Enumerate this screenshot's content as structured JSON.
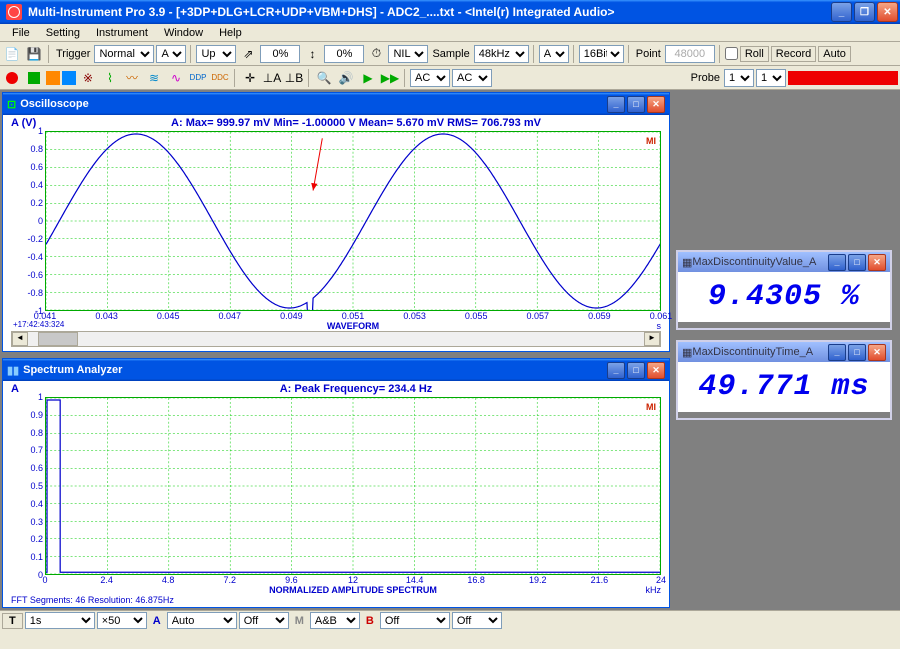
{
  "app": {
    "title": "Multi-Instrument Pro 3.9   -   [+3DP+DLG+LCR+UDP+VBM+DHS]   -   ADC2_....txt   -   <Intel(r) Integrated Audio>"
  },
  "menu": {
    "file": "File",
    "setting": "Setting",
    "instrument": "Instrument",
    "window": "Window",
    "help": "Help"
  },
  "toolbar1": {
    "trigger": "Trigger",
    "mode": "Normal",
    "edge": "A",
    "slope": "Up",
    "level1": "0%",
    "level2": "0%",
    "coupling": "NIL",
    "sample": "Sample",
    "rate": "48kHz",
    "ch": "A",
    "bits": "16Bit",
    "point": "Point",
    "points": "48000",
    "roll": "Roll",
    "record": "Record",
    "auto": "Auto"
  },
  "toolbar2": {
    "ac1": "AC",
    "ac2": "AC",
    "probe": "Probe",
    "p1": "1",
    "p2": "1"
  },
  "osc": {
    "title": "Oscilloscope",
    "ylabel": "A  (V)",
    "stats": "A: Max=     999.97 mV   Min=   -1.00000    V   Mean=        5.670 mV  RMS=     706.793 mV",
    "xlabel": "WAVEFORM",
    "xunit": "s",
    "timestamp": "+17:42:43:324",
    "marker": "MI",
    "yticks": [
      "1",
      "0.8",
      "0.6",
      "0.4",
      "0.2",
      "0",
      "-0.2",
      "-0.4",
      "-0.6",
      "-0.8",
      "-1"
    ],
    "xticks": [
      "0.041",
      "0.043",
      "0.045",
      "0.047",
      "0.049",
      "0.051",
      "0.053",
      "0.055",
      "0.057",
      "0.059",
      "0.061"
    ],
    "ylim": [
      -1,
      1
    ],
    "xlim": [
      0.041,
      0.061
    ],
    "grid_color": "#00cc00",
    "line_color": "#0000cc",
    "bg_color": "#ffffff",
    "sine_freq_hz": 100,
    "sine_amplitude": 1.0,
    "glitch_time": 0.0496,
    "glitch_depth": 0.25,
    "arrow_from": [
      0.05,
      0.95
    ],
    "arrow_to": [
      0.0497,
      0.35
    ],
    "arrow_color": "#ee0000"
  },
  "spec": {
    "title": "Spectrum Analyzer",
    "ylabel": "A",
    "stats": "A: Peak Frequency=     234.4     Hz",
    "xlabel": "NORMALIZED AMPLITUDE SPECTRUM",
    "xunit": "kHz",
    "footer": "FFT Segments: 46   Resolution: 46.875Hz",
    "marker": "MI",
    "yticks": [
      "1",
      "0.9",
      "0.8",
      "0.7",
      "0.6",
      "0.5",
      "0.4",
      "0.3",
      "0.2",
      "0.1",
      "0"
    ],
    "xticks": [
      "0",
      "2.4",
      "4.8",
      "7.2",
      "9.6",
      "12",
      "14.4",
      "16.8",
      "19.2",
      "21.6",
      "24"
    ],
    "ylim": [
      0,
      1
    ],
    "xlim": [
      0,
      24
    ],
    "grid_color": "#00cc00",
    "line_color": "#0000cc",
    "peak_x": 0.234,
    "peak_y": 1.0,
    "floor_y": 0.01
  },
  "valA": {
    "title": "MaxDiscontinuityValue_A",
    "value": "9.4305 %"
  },
  "valB": {
    "title": "MaxDiscontinuityTime_A",
    "value": "49.771 ms"
  },
  "bottom": {
    "t": "T",
    "t_val": "1s",
    "zoom": "×50",
    "a": "A",
    "a_val": "Auto",
    "a_off": "Off",
    "m": "M",
    "m_val": "A&B",
    "b": "B",
    "b_val": "Off",
    "b_off": "Off"
  }
}
